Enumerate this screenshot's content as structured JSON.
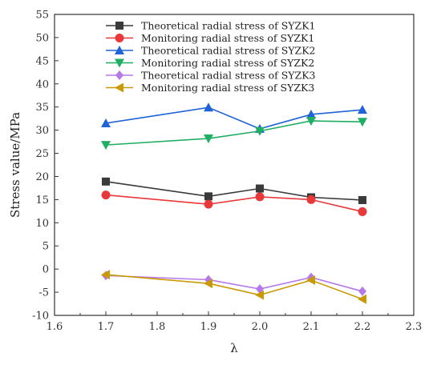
{
  "chart_data": {
    "type": "line",
    "xlabel": "λ",
    "ylabel": "Stress value/MPa",
    "xlim": [
      1.6,
      2.3
    ],
    "ylim": [
      -10,
      55
    ],
    "xticks": [
      "1.6",
      "1.7",
      "1.8",
      "1.9",
      "2.0",
      "2.1",
      "2.2",
      "2.3"
    ],
    "yticks": [
      "-10",
      "-5",
      "0",
      "5",
      "10",
      "15",
      "20",
      "25",
      "30",
      "35",
      "40",
      "45",
      "50",
      "55"
    ],
    "grid": false,
    "legend_position": "top-left",
    "x": [
      1.7,
      1.9,
      2.0,
      2.1,
      2.2
    ],
    "series": [
      {
        "name": "Theoretical radial stress of SYZK1",
        "values": [
          18.9,
          15.7,
          17.4,
          15.5,
          14.9
        ],
        "color": "#3a3a3a",
        "marker": "square"
      },
      {
        "name": "Monitoring radial stress of SYZK1",
        "values": [
          16.0,
          14.0,
          15.6,
          15.0,
          12.4
        ],
        "color": "#e8383a",
        "marker": "circle"
      },
      {
        "name": "Theoretical radial stress of SYZK2",
        "values": [
          31.5,
          34.9,
          30.3,
          33.4,
          34.4
        ],
        "color": "#1f63d6",
        "marker": "triangle-up"
      },
      {
        "name": "Monitoring radial stress of SYZK2",
        "values": [
          26.8,
          28.2,
          29.8,
          32.0,
          31.8
        ],
        "color": "#1fae62",
        "marker": "triangle-down"
      },
      {
        "name": "Theoretical radial stress of SYZK3",
        "values": [
          -1.4,
          -2.3,
          -4.3,
          -1.8,
          -4.8
        ],
        "color": "#b57ae8",
        "marker": "diamond"
      },
      {
        "name": "Monitoring radial stress of SYZK3",
        "values": [
          -1.2,
          -3.1,
          -5.6,
          -2.4,
          -6.5
        ],
        "color": "#c99a06",
        "marker": "triangle-left"
      }
    ]
  }
}
